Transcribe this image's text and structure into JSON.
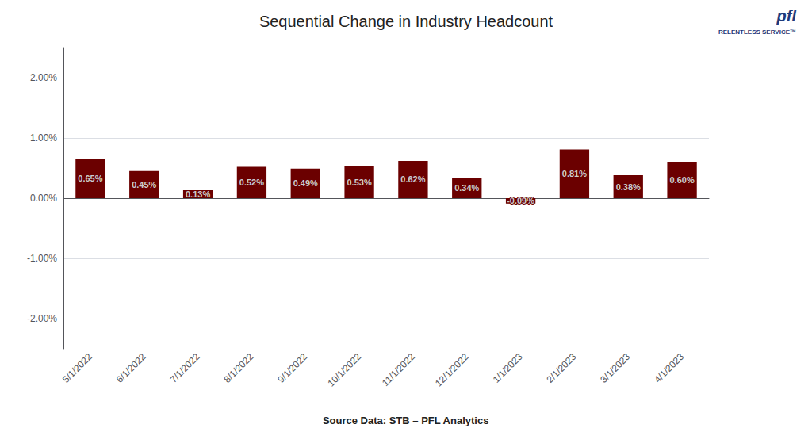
{
  "chart_data": {
    "type": "bar",
    "title": "Sequential Change in Industry Headcount",
    "categories": [
      "5/1/2022",
      "6/1/2022",
      "7/1/2022",
      "8/1/2022",
      "9/1/2022",
      "10/1/2022",
      "11/1/2022",
      "12/1/2022",
      "1/1/2023",
      "2/1/2023",
      "3/1/2023",
      "4/1/2023"
    ],
    "values": [
      0.0065,
      0.0045,
      0.0013,
      0.0052,
      0.0049,
      0.0053,
      0.0062,
      0.0034,
      -0.0009,
      0.0081,
      0.0038,
      0.006
    ],
    "value_labels": [
      "0.65%",
      "0.45%",
      "0.13%",
      "0.52%",
      "0.49%",
      "0.53%",
      "0.62%",
      "0.34%",
      "-0.09%",
      "0.81%",
      "0.38%",
      "0.60%"
    ],
    "color": "#6B0000",
    "ylim": [
      -0.025,
      0.025
    ],
    "yticks": [
      {
        "value": -0.02,
        "label": "-2.00%"
      },
      {
        "value": -0.01,
        "label": "-1.00%"
      },
      {
        "value": 0.0,
        "label": "0.00%"
      },
      {
        "value": 0.01,
        "label": "1.00%"
      },
      {
        "value": 0.02,
        "label": "2.00%"
      }
    ],
    "grid": true,
    "data_labels": true,
    "annotations": [
      "Source Data: STB – PFL Analytics",
      "pfl",
      "RELENTLESS SERVICE™"
    ]
  }
}
